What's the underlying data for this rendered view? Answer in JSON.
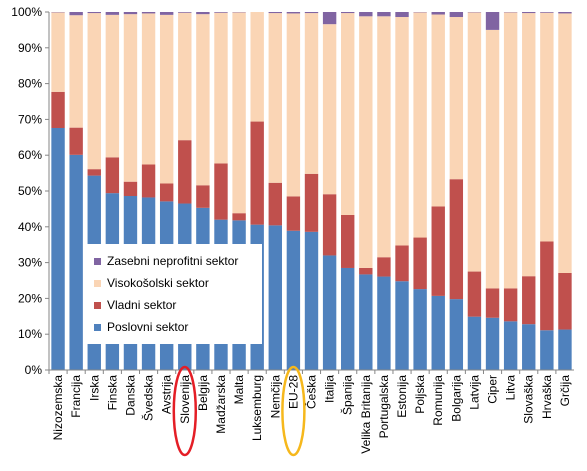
{
  "chart_data": {
    "type": "bar",
    "stacked": true,
    "percent_stacked": true,
    "ylim": [
      0,
      100
    ],
    "yticks": [
      "0%",
      "10%",
      "20%",
      "30%",
      "40%",
      "50%",
      "60%",
      "70%",
      "80%",
      "90%",
      "100%"
    ],
    "grid": false,
    "legend_position": "left-center",
    "categories": [
      "Nizozemska",
      "Francija",
      "Irska",
      "Finska",
      "Danska",
      "Švedska",
      "Avstrija",
      "Slovenija",
      "Belgija",
      "Madžarska",
      "Malta",
      "Luksemburg",
      "Nemčija",
      "EU-28",
      "Češka",
      "Italija",
      "Španija",
      "Velika Britanija",
      "Portugalska",
      "Estonija",
      "Poljska",
      "Romunija",
      "Bolgarija",
      "Latvija",
      "Ciper",
      "Litva",
      "Slovaška",
      "Hrvaška",
      "Grčija"
    ],
    "series": [
      {
        "name": "Poslovni sektor",
        "color": "#4F81BD",
        "values": [
          67.6,
          60.1,
          54.3,
          49.4,
          48.6,
          48.2,
          47.1,
          46.5,
          45.3,
          42.0,
          41.8,
          40.6,
          40.4,
          38.9,
          38.6,
          32.0,
          28.5,
          26.7,
          26.1,
          24.8,
          22.6,
          20.7,
          19.8,
          14.9,
          14.6,
          13.6,
          12.8,
          11.1,
          11.3
        ]
      },
      {
        "name": "Vladni sektor",
        "color": "#C0504D",
        "values": [
          10.1,
          7.6,
          1.8,
          10.0,
          4.0,
          9.2,
          5.0,
          17.7,
          6.3,
          15.7,
          2.0,
          28.8,
          11.9,
          9.6,
          16.2,
          17.1,
          14.8,
          1.8,
          5.4,
          10.0,
          14.4,
          25.0,
          33.5,
          12.6,
          8.2,
          9.2,
          13.4,
          24.8,
          15.8
        ]
      },
      {
        "name": "Visokošolski sektor",
        "color": "#FAD5B5",
        "values": [
          22.2,
          31.4,
          43.6,
          39.8,
          46.8,
          42.2,
          47.1,
          35.6,
          47.8,
          42.1,
          56.1,
          30.6,
          47.4,
          51.1,
          44.9,
          47.5,
          56.4,
          70.3,
          67.3,
          63.8,
          62.9,
          53.6,
          45.3,
          72.4,
          72.2,
          77.1,
          73.5,
          63.9,
          72.5
        ]
      },
      {
        "name": "Zasebni neprofitni sektor",
        "color": "#8064A2",
        "values": [
          0.1,
          0.9,
          0.3,
          0.8,
          0.6,
          0.4,
          0.8,
          0.2,
          0.6,
          0.2,
          0.1,
          0.0,
          0.3,
          0.4,
          0.3,
          3.4,
          0.3,
          1.2,
          1.2,
          1.4,
          0.1,
          0.7,
          1.4,
          0.1,
          5.0,
          0.1,
          0.3,
          0.2,
          0.4
        ]
      }
    ],
    "legend_order": [
      "Zasebni neprofitni sektor",
      "Visokošolski sektor",
      "Vladni sektor",
      "Poslovni sektor"
    ],
    "highlights": [
      {
        "category": "Slovenija",
        "color": "#E41E26"
      },
      {
        "category": "EU-28",
        "color": "#F6B81C"
      }
    ]
  }
}
